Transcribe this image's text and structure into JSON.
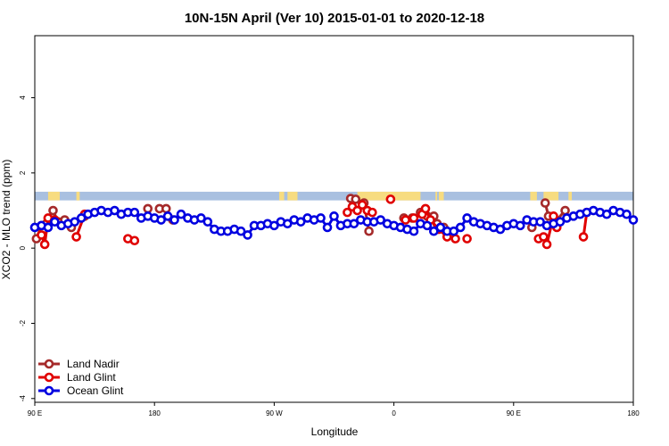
{
  "chart_data": {
    "type": "line",
    "title": "10N-15N April (Ver 10)   2015-01-01 to 2020-12-18",
    "xlabel": "Longitude",
    "ylabel": "XCO2 - MLO trend (ppm)",
    "xlim": [
      -90,
      270
    ],
    "ylim": [
      -4.1,
      5.65
    ],
    "x_ticks": [
      -90,
      -18,
      54,
      126,
      198,
      270
    ],
    "x_tick_labels": [
      "90 E",
      "180",
      "90 W",
      "0",
      "90 E",
      "180"
    ],
    "y_ticks": [
      -4,
      -2,
      0,
      2,
      4
    ],
    "y_tick_labels": [
      "-4",
      "-2",
      "0",
      "2",
      "4"
    ],
    "grid": false,
    "legend": {
      "placement": "bottom-left",
      "entries": [
        "Land Nadir",
        "Land Glint",
        "Ocean Glint"
      ]
    },
    "map_band": {
      "y_range": [
        1.27,
        1.5
      ],
      "ocean_color": "#a9c0e0",
      "land_color": "#f7dc80",
      "land_segments": [
        [
          -82,
          -75
        ],
        [
          -65,
          -63
        ],
        [
          57,
          60
        ],
        [
          62,
          68
        ],
        [
          104,
          142
        ],
        [
          151,
          152
        ],
        [
          153,
          156
        ],
        [
          208,
          212
        ],
        [
          216,
          225
        ],
        [
          231,
          233
        ]
      ]
    },
    "series": [
      {
        "name": "Land Nadir",
        "color": "#a52a2a",
        "x": [
          -89,
          -86,
          -83,
          -79,
          -76,
          -72,
          -68,
          -60,
          -22,
          -15,
          -11,
          -7,
          100,
          103,
          108,
          111,
          132,
          137,
          142,
          146,
          150,
          152,
          156,
          209,
          217,
          219,
          223,
          229
        ],
        "y": [
          0.25,
          0.6,
          0.65,
          1.0,
          0.7,
          0.75,
          0.55,
          0.85,
          1.05,
          1.05,
          1.05,
          0.75,
          1.32,
          1.3,
          1.2,
          0.45,
          0.8,
          0.8,
          0.95,
          0.85,
          0.85,
          0.65,
          0.55,
          0.55,
          1.2,
          0.85,
          0.7,
          1.0
        ]
      },
      {
        "name": "Land Glint",
        "color": "#e00000",
        "x": [
          -86,
          -84,
          -82,
          -78,
          -65,
          -60,
          -34,
          -30,
          98,
          101,
          104,
          107,
          110,
          113,
          124,
          133,
          138,
          143,
          145,
          148,
          153,
          158,
          163,
          170,
          213,
          216,
          218,
          222,
          224,
          240,
          242
        ],
        "y": [
          0.35,
          0.1,
          0.8,
          0.75,
          0.3,
          0.9,
          0.25,
          0.2,
          0.95,
          1.1,
          1.0,
          1.15,
          1.0,
          0.95,
          1.3,
          0.75,
          0.8,
          0.9,
          1.05,
          0.75,
          0.5,
          0.3,
          0.25,
          0.25,
          0.25,
          0.3,
          0.1,
          0.85,
          0.55,
          0.3,
          0.95
        ]
      },
      {
        "name": "Ocean Glint",
        "color": "#0000e0",
        "x": [
          -90,
          -86,
          -82,
          -78,
          -74,
          -70,
          -66,
          -62,
          -58,
          -54,
          -50,
          -46,
          -42,
          -38,
          -34,
          -30,
          -26,
          -22,
          -18,
          -14,
          -10,
          -6,
          -2,
          2,
          6,
          10,
          14,
          18,
          22,
          26,
          30,
          34,
          38,
          42,
          46,
          50,
          54,
          58,
          62,
          66,
          70,
          74,
          78,
          82,
          86,
          90,
          94,
          98,
          102,
          106,
          110,
          114,
          118,
          122,
          126,
          130,
          134,
          138,
          142,
          146,
          150,
          154,
          158,
          162,
          166,
          170,
          174,
          178,
          182,
          186,
          190,
          194,
          198,
          202,
          206,
          210,
          214,
          218,
          222,
          226,
          230,
          234,
          238,
          242,
          246,
          250,
          254,
          258,
          262,
          266,
          270
        ],
        "y": [
          0.55,
          0.6,
          0.55,
          0.7,
          0.6,
          0.65,
          0.7,
          0.8,
          0.9,
          0.95,
          1.0,
          0.95,
          1.0,
          0.9,
          0.95,
          0.95,
          0.8,
          0.85,
          0.8,
          0.75,
          0.85,
          0.75,
          0.9,
          0.8,
          0.75,
          0.8,
          0.7,
          0.5,
          0.45,
          0.45,
          0.5,
          0.45,
          0.35,
          0.6,
          0.6,
          0.65,
          0.6,
          0.7,
          0.65,
          0.75,
          0.7,
          0.8,
          0.75,
          0.8,
          0.55,
          0.85,
          0.6,
          0.65,
          0.65,
          0.75,
          0.7,
          0.7,
          0.75,
          0.65,
          0.6,
          0.55,
          0.5,
          0.45,
          0.65,
          0.6,
          0.45,
          0.55,
          0.45,
          0.45,
          0.55,
          0.8,
          0.7,
          0.65,
          0.6,
          0.55,
          0.5,
          0.6,
          0.65,
          0.6,
          0.75,
          0.7,
          0.7,
          0.6,
          0.65,
          0.7,
          0.8,
          0.85,
          0.9,
          0.95,
          1.0,
          0.95,
          0.9,
          1.0,
          0.95,
          0.9,
          0.75
        ]
      }
    ]
  }
}
